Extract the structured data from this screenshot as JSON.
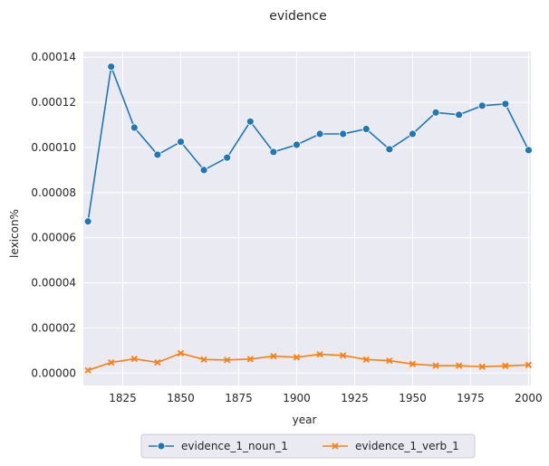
{
  "chart_data": {
    "type": "line",
    "title": "evidence",
    "xlabel": "year",
    "ylabel": "lexicon%",
    "x": [
      1810,
      1820,
      1830,
      1840,
      1850,
      1860,
      1870,
      1880,
      1890,
      1900,
      1910,
      1920,
      1930,
      1940,
      1950,
      1960,
      1970,
      1980,
      1990,
      2000
    ],
    "xlim": [
      1808,
      2001
    ],
    "ylim": [
      -5.5e-06,
      0.0001425
    ],
    "xticks": [
      1825,
      1850,
      1875,
      1900,
      1925,
      1950,
      1975,
      2000
    ],
    "yticks": [
      0,
      2e-05,
      4e-05,
      6e-05,
      8e-05,
      0.0001,
      0.00012,
      0.00014
    ],
    "xtick_labels": [
      "1825",
      "1850",
      "1875",
      "1900",
      "1925",
      "1950",
      "1975",
      "2000"
    ],
    "ytick_labels": [
      "0.00000",
      "0.00002",
      "0.00004",
      "0.00006",
      "0.00008",
      "0.00010",
      "0.00012",
      "0.00014"
    ],
    "grid": true,
    "legend_position": "bottom-center",
    "series": [
      {
        "name": "evidence_1_noun_1",
        "color": "#1f77b4",
        "marker": "circle",
        "values": [
          6.72e-05,
          0.0001358,
          0.0001088,
          9.68e-05,
          0.0001025,
          9e-05,
          9.55e-05,
          0.0001115,
          9.8e-05,
          0.0001012,
          0.000106,
          0.000106,
          0.0001082,
          9.92e-05,
          0.000106,
          0.0001155,
          0.0001145,
          0.0001185,
          0.0001193,
          9.88e-05
        ]
      },
      {
        "name": "evidence_1_verb_1",
        "color": "#ff7f0e",
        "marker": "x",
        "values": [
          1.2e-06,
          4.7e-06,
          6.3e-06,
          4.7e-06,
          8.8e-06,
          6e-06,
          5.8e-06,
          6.2e-06,
          7.5e-06,
          7e-06,
          8.3e-06,
          7.8e-06,
          6e-06,
          5.5e-06,
          4e-06,
          3.3e-06,
          3.3e-06,
          2.8e-06,
          3.2e-06,
          3.6e-06
        ]
      }
    ]
  }
}
